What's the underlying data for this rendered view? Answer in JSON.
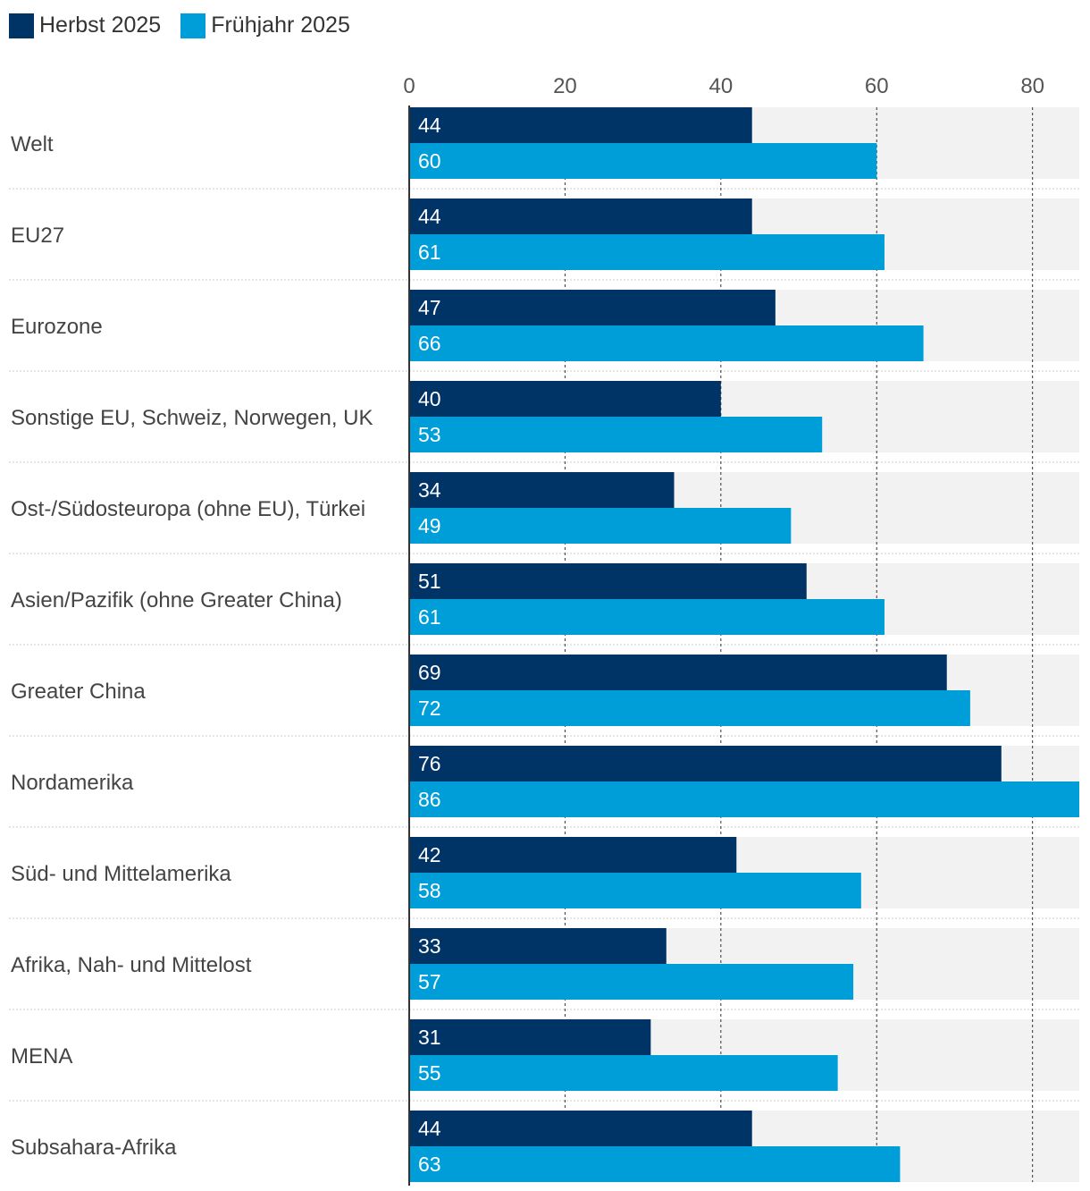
{
  "colors": {
    "series_dark": "#003366",
    "series_light": "#009ED8",
    "track": "#F2F2F2",
    "grid": "#333333",
    "separator": "#CCCCCC",
    "label_text": "#444444",
    "value_text": "#FFFFFF"
  },
  "legend": {
    "items": [
      {
        "label": "Herbst 2025"
      },
      {
        "label": "Frühjahr 2025"
      }
    ]
  },
  "chart_data": {
    "type": "bar",
    "orientation": "horizontal",
    "categories": [
      "Welt",
      "EU27",
      "Eurozone",
      "Sonstige EU, Schweiz, Norwegen, UK",
      "Ost-/Südosteuropa (ohne EU), Türkei",
      "Asien/Pazifik (ohne Greater China)",
      "Greater China",
      "Nordamerika",
      "Süd- und Mittelamerika",
      "Afrika, Nah- und Mittelost",
      "MENA",
      "Subsahara-Afrika"
    ],
    "series": [
      {
        "name": "Herbst 2025",
        "values": [
          44,
          44,
          47,
          40,
          34,
          51,
          69,
          76,
          42,
          33,
          31,
          44
        ]
      },
      {
        "name": "Frühjahr 2025",
        "values": [
          60,
          61,
          66,
          53,
          49,
          61,
          72,
          86,
          58,
          57,
          55,
          63
        ]
      }
    ],
    "xlim": [
      0,
      86
    ],
    "xticks": [
      0,
      20,
      40,
      60,
      80
    ],
    "title": "",
    "xlabel": "",
    "ylabel": "",
    "grid": true,
    "legend_position": "top-left"
  }
}
